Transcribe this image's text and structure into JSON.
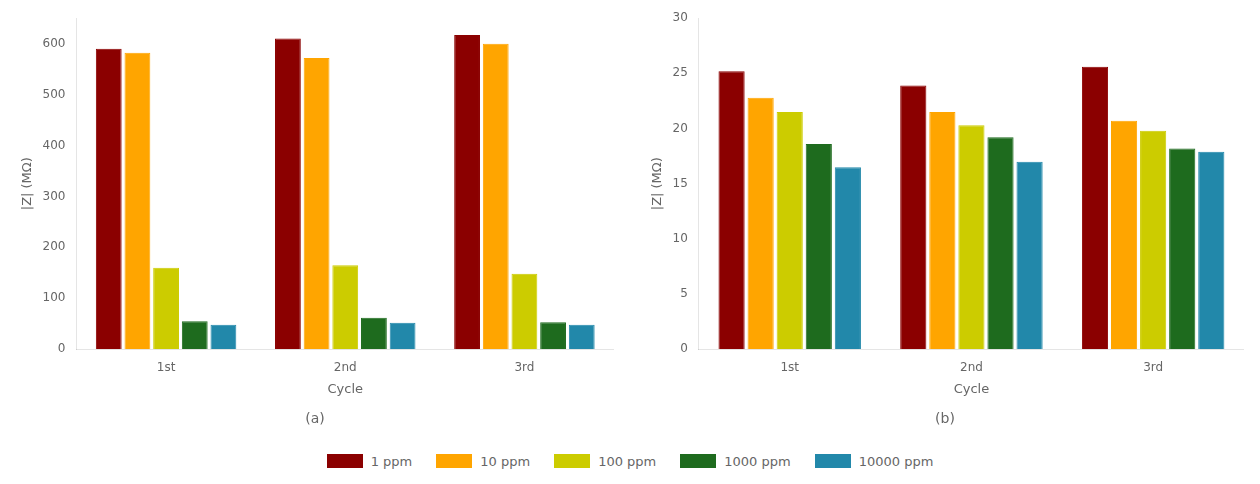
{
  "chart_data": [
    {
      "type": "bar",
      "title": "(a)",
      "x_label": "Cycle",
      "y_label": "|Z| (MΩ)",
      "categories": [
        "1st",
        "2nd",
        "3rd"
      ],
      "series": [
        {
          "name": "1 ppm",
          "color": "#8B0000",
          "values": [
            590,
            610,
            617
          ]
        },
        {
          "name": "10 ppm",
          "color": "#FFA500",
          "values": [
            582,
            572,
            600
          ]
        },
        {
          "name": "100 ppm",
          "color": "#CCCC00",
          "values": [
            160,
            165,
            148
          ]
        },
        {
          "name": "1000 ppm",
          "color": "#1E6B1E",
          "values": [
            55,
            62,
            53
          ]
        },
        {
          "name": "10000 ppm",
          "color": "#2288AA",
          "values": [
            48,
            52,
            48
          ]
        }
      ],
      "ylim": [
        0,
        650
      ],
      "yticks": [
        0,
        100,
        200,
        300,
        400,
        500,
        600
      ],
      "grid": false,
      "legend": "bottom"
    },
    {
      "type": "bar",
      "title": "(b)",
      "x_label": "Cycle",
      "y_label": "|Z| (MΩ)",
      "categories": [
        "1st",
        "2nd",
        "3rd"
      ],
      "series": [
        {
          "name": "1 ppm",
          "color": "#8B0000",
          "values": [
            25.2,
            23.9,
            25.6
          ]
        },
        {
          "name": "10 ppm",
          "color": "#FFA500",
          "values": [
            22.8,
            21.5,
            20.7
          ]
        },
        {
          "name": "100 ppm",
          "color": "#CCCC00",
          "values": [
            21.5,
            20.3,
            19.8
          ]
        },
        {
          "name": "1000 ppm",
          "color": "#1E6B1E",
          "values": [
            18.6,
            19.2,
            18.2
          ]
        },
        {
          "name": "10000 ppm",
          "color": "#2288AA",
          "values": [
            16.5,
            17.0,
            17.9
          ]
        }
      ],
      "ylim": [
        0,
        30
      ],
      "yticks": [
        0,
        5,
        10,
        15,
        20,
        25,
        30
      ],
      "grid": false,
      "legend": "bottom"
    }
  ]
}
